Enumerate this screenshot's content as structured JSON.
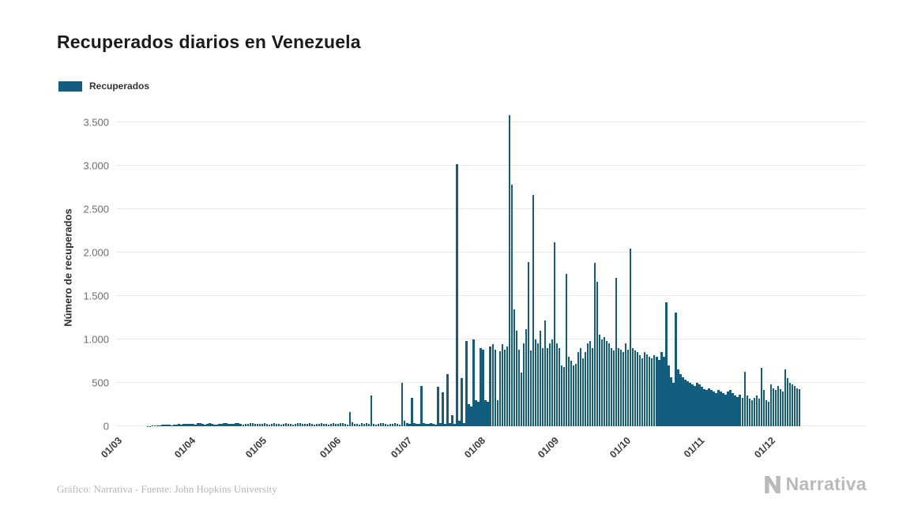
{
  "header": {
    "title": "Recuperados diarios en Venezuela"
  },
  "legend": {
    "items": [
      {
        "label": "Recuperados",
        "color": "#135d7f"
      }
    ]
  },
  "footer": {
    "credit": "Gráfico: Narrativa - Fuente: John Hopkins University",
    "brand": "Narrativa"
  },
  "colors": {
    "bar": "#135d7f",
    "grid": "#e8e8e8",
    "credit_text": "#b6b6b6",
    "brand_gray": "#b9b9bd"
  },
  "chart_data": {
    "type": "bar",
    "title": "Recuperados diarios en Venezuela",
    "xlabel": "",
    "ylabel": "Número de recuperados",
    "legend_entries": [
      "Recuperados"
    ],
    "bar_color": "#135d7f",
    "grid": true,
    "legend_position": "top-left",
    "ylim": [
      0,
      3650
    ],
    "start_date": "2020-03-01",
    "end_date": "2020-12-13",
    "axis_total_days": 315,
    "y_ticks": [
      {
        "value": 0,
        "label": "0"
      },
      {
        "value": 500,
        "label": "500"
      },
      {
        "value": 1000,
        "label": "1.000"
      },
      {
        "value": 1500,
        "label": "1.500"
      },
      {
        "value": 2000,
        "label": "2.000"
      },
      {
        "value": 2500,
        "label": "2.500"
      },
      {
        "value": 3000,
        "label": "3.000"
      },
      {
        "value": 3500,
        "label": "3.500"
      }
    ],
    "x_ticks": [
      {
        "date": "2020-03-01",
        "label": "01/03"
      },
      {
        "date": "2020-04-01",
        "label": "01/04"
      },
      {
        "date": "2020-05-01",
        "label": "01/05"
      },
      {
        "date": "2020-06-01",
        "label": "01/06"
      },
      {
        "date": "2020-07-01",
        "label": "01/07"
      },
      {
        "date": "2020-08-01",
        "label": "01/08"
      },
      {
        "date": "2020-09-01",
        "label": "01/09"
      },
      {
        "date": "2020-10-01",
        "label": "01/10"
      },
      {
        "date": "2020-11-01",
        "label": "01/11"
      },
      {
        "date": "2020-12-01",
        "label": "01/12"
      }
    ],
    "values": [
      0,
      0,
      0,
      0,
      0,
      0,
      0,
      0,
      0,
      0,
      0,
      0,
      0,
      2,
      3,
      5,
      8,
      10,
      12,
      15,
      18,
      20,
      15,
      12,
      18,
      22,
      25,
      20,
      28,
      30,
      25,
      30,
      25,
      20,
      35,
      40,
      28,
      22,
      30,
      35,
      26,
      20,
      15,
      25,
      30,
      35,
      33,
      28,
      24,
      30,
      32,
      36,
      26,
      22,
      28,
      30,
      38,
      32,
      26,
      24,
      30,
      28,
      32,
      25,
      20,
      30,
      35,
      30,
      26,
      22,
      28,
      35,
      30,
      24,
      20,
      26,
      32,
      36,
      28,
      24,
      30,
      34,
      28,
      22,
      26,
      30,
      36,
      30,
      25,
      20,
      28,
      32,
      30,
      25,
      35,
      40,
      30,
      20,
      160,
      45,
      30,
      25,
      20,
      35,
      30,
      40,
      25,
      350,
      30,
      20,
      25,
      35,
      40,
      30,
      20,
      25,
      30,
      35,
      25,
      20,
      500,
      60,
      40,
      30,
      330,
      35,
      25,
      30,
      460,
      40,
      30,
      25,
      35,
      30,
      20,
      450,
      35,
      390,
      30,
      600,
      35,
      130,
      25,
      3014,
      60,
      550,
      40,
      980,
      250,
      230,
      1000,
      300,
      280,
      900,
      880,
      300,
      280,
      920,
      940,
      880,
      300,
      860,
      940,
      880,
      920,
      3580,
      2780,
      1340,
      1100,
      880,
      620,
      950,
      1120,
      1890,
      870,
      2660,
      1000,
      950,
      1100,
      900,
      1220,
      900,
      950,
      1000,
      2120,
      950,
      900,
      700,
      680,
      1750,
      800,
      750,
      700,
      720,
      850,
      900,
      780,
      850,
      950,
      980,
      900,
      1880,
      1660,
      1050,
      1000,
      1030,
      980,
      950,
      900,
      870,
      1710,
      900,
      880,
      850,
      950,
      880,
      2040,
      900,
      870,
      850,
      820,
      780,
      850,
      830,
      800,
      780,
      820,
      800,
      760,
      850,
      800,
      1430,
      700,
      560,
      500,
      1310,
      650,
      600,
      560,
      540,
      520,
      500,
      480,
      460,
      500,
      480,
      450,
      430,
      420,
      440,
      420,
      400,
      380,
      420,
      400,
      380,
      360,
      400,
      420,
      380,
      350,
      340,
      360,
      330,
      630,
      350,
      320,
      300,
      330,
      350,
      320,
      670,
      420,
      300,
      280,
      480,
      440,
      420,
      460,
      430,
      400,
      650,
      550,
      500,
      480,
      460,
      440,
      430
    ]
  }
}
